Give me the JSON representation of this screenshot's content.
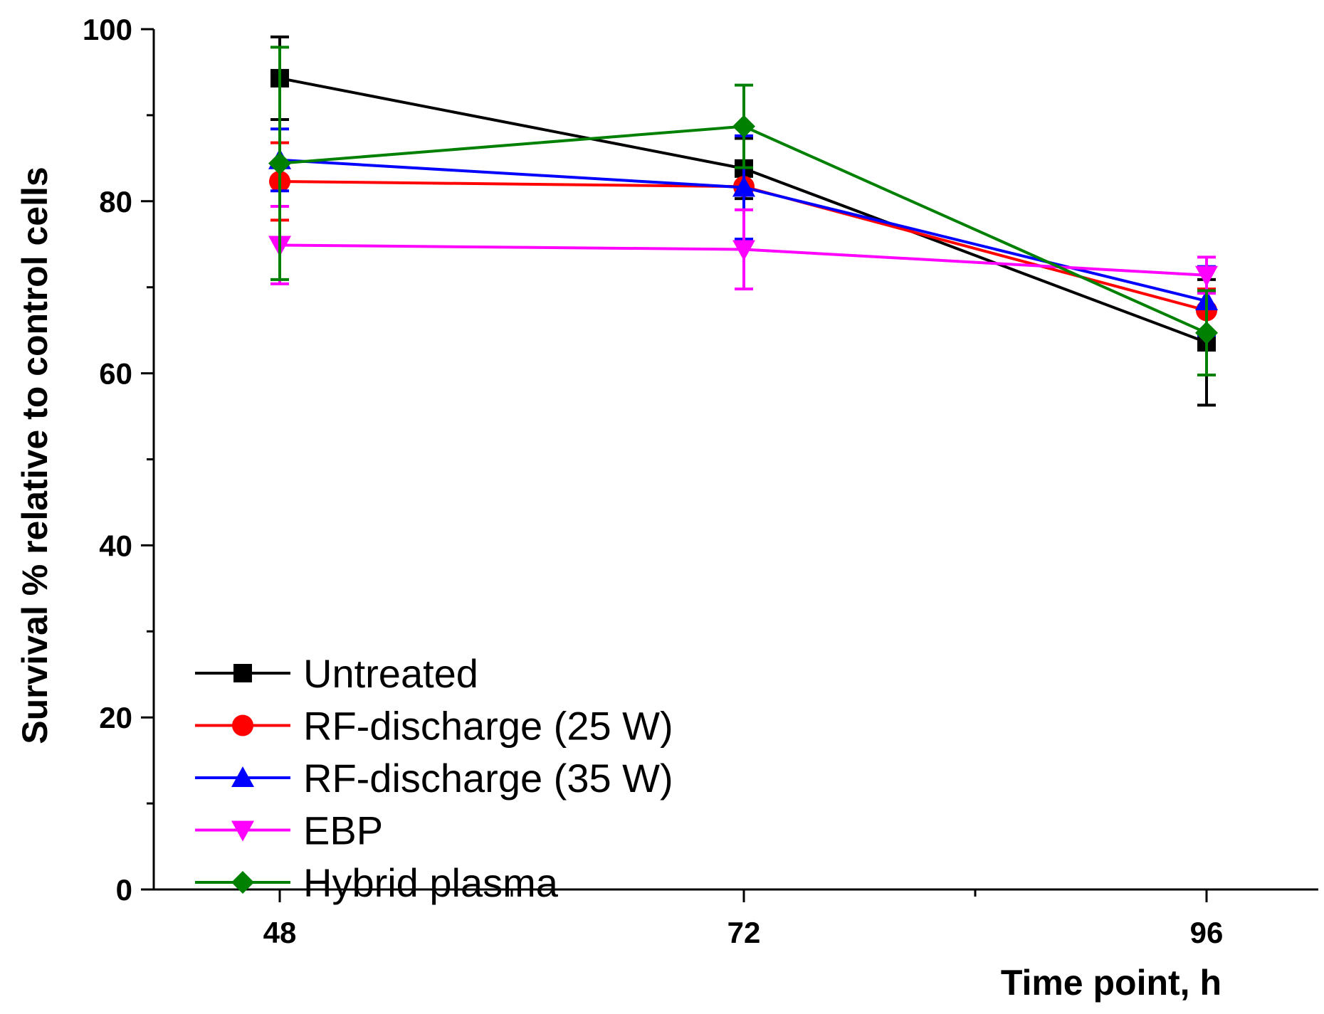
{
  "chart_data": {
    "type": "line",
    "title": "",
    "xlabel": "Time point, h",
    "ylabel": "Survival %  relative to control cells",
    "categories": [
      "48",
      "72",
      "96"
    ],
    "ylim": [
      0,
      100
    ],
    "yticks": [
      0,
      20,
      40,
      60,
      80,
      100
    ],
    "yminor": [
      10,
      30,
      50,
      70,
      90
    ],
    "legend_position": "bottom-left",
    "series": [
      {
        "name": "Untreated",
        "marker": "square",
        "color": "#000000",
        "values": [
          94.3,
          83.8,
          63.6
        ],
        "errors": [
          4.8,
          3.5,
          7.3
        ]
      },
      {
        "name": "RF-discharge (25 W)",
        "marker": "circle",
        "color": "#ff0000",
        "values": [
          82.3,
          81.7,
          67.3
        ],
        "errors": [
          4.5,
          0.5,
          2.5
        ]
      },
      {
        "name": "RF-discharge (35 W)",
        "marker": "triangle-up",
        "color": "#0000ff",
        "values": [
          84.8,
          81.6,
          68.4
        ],
        "errors": [
          3.6,
          6.0,
          4.0
        ]
      },
      {
        "name": "EBP",
        "marker": "triangle-down",
        "color": "#ff00ff",
        "values": [
          74.9,
          74.4,
          71.4
        ],
        "errors": [
          4.5,
          4.6,
          2.1
        ]
      },
      {
        "name": "Hybrid plasma",
        "marker": "diamond",
        "color": "#008000",
        "values": [
          84.4,
          88.7,
          64.7
        ],
        "errors": [
          13.5,
          4.8,
          4.9
        ]
      }
    ]
  }
}
